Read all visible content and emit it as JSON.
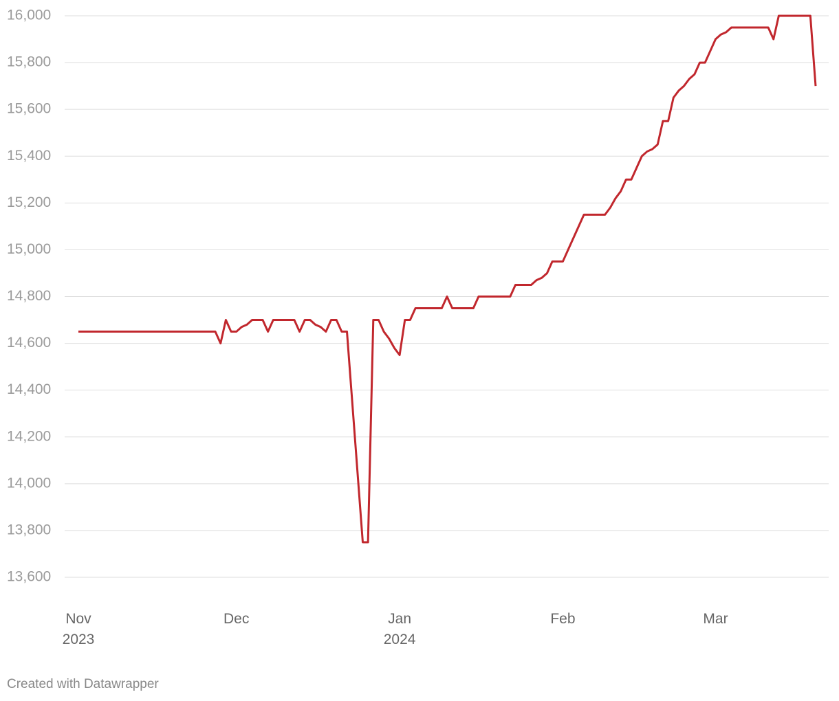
{
  "chart_data": {
    "type": "line",
    "categories": [
      "Nov\n2023",
      null,
      null,
      null,
      null,
      null,
      null,
      null,
      null,
      null,
      null,
      null,
      null,
      null,
      null,
      null,
      null,
      null,
      null,
      null,
      null,
      null,
      null,
      null,
      null,
      null,
      null,
      null,
      null,
      null,
      "Dec",
      null,
      null,
      null,
      null,
      null,
      null,
      null,
      null,
      null,
      null,
      null,
      null,
      null,
      null,
      null,
      null,
      null,
      null,
      null,
      null,
      null,
      null,
      null,
      null,
      null,
      null,
      null,
      null,
      null,
      null,
      "Jan\n2024",
      null,
      null,
      null,
      null,
      null,
      null,
      null,
      null,
      null,
      null,
      null,
      null,
      null,
      null,
      null,
      null,
      null,
      null,
      null,
      null,
      null,
      null,
      null,
      null,
      null,
      null,
      null,
      null,
      null,
      null,
      "Feb",
      null,
      null,
      null,
      null,
      null,
      null,
      null,
      null,
      null,
      null,
      null,
      null,
      null,
      null,
      null,
      null,
      null,
      null,
      null,
      null,
      null,
      null,
      null,
      null,
      null,
      null,
      null,
      null,
      "Mar",
      null,
      null,
      null,
      null,
      null,
      null,
      null,
      null,
      null,
      null,
      null,
      null,
      null,
      null,
      null,
      null,
      null,
      null,
      null
    ],
    "values": [
      14650,
      14650,
      14650,
      14650,
      14650,
      14650,
      14650,
      14650,
      14650,
      14650,
      14650,
      14650,
      14650,
      14650,
      14650,
      14650,
      14650,
      14650,
      14650,
      14650,
      14650,
      14650,
      14650,
      14650,
      14650,
      14650,
      14650,
      14600,
      14700,
      14650,
      14650,
      14670,
      14680,
      14700,
      14700,
      14700,
      14650,
      14700,
      14700,
      14700,
      14700,
      14700,
      14650,
      14700,
      14700,
      14680,
      14670,
      14650,
      14700,
      14700,
      14650,
      14650,
      14350,
      14050,
      13750,
      13750,
      14700,
      14700,
      14650,
      14620,
      14580,
      14550,
      14700,
      14700,
      14750,
      14750,
      14750,
      14750,
      14750,
      14750,
      14800,
      14750,
      14750,
      14750,
      14750,
      14750,
      14800,
      14800,
      14800,
      14800,
      14800,
      14800,
      14800,
      14850,
      14850,
      14850,
      14850,
      14870,
      14880,
      14900,
      14950,
      14950,
      14950,
      15000,
      15050,
      15100,
      15150,
      15150,
      15150,
      15150,
      15150,
      15180,
      15220,
      15250,
      15300,
      15300,
      15350,
      15400,
      15420,
      15430,
      15450,
      15550,
      15550,
      15650,
      15680,
      15700,
      15730,
      15750,
      15800,
      15800,
      15850,
      15900,
      15920,
      15930,
      15950,
      15950,
      15950,
      15950,
      15950,
      15950,
      15950,
      15950,
      15900,
      16000,
      16000,
      16000,
      16000,
      16000,
      16000,
      16000,
      15700
    ],
    "color": "#c1272d",
    "ylim": [
      13600,
      16000
    ],
    "yticks": [
      {
        "value": 13600,
        "label": "13,600"
      },
      {
        "value": 13800,
        "label": "13,800"
      },
      {
        "value": 14000,
        "label": "14,000"
      },
      {
        "value": 14200,
        "label": "14,200"
      },
      {
        "value": 14400,
        "label": "14,400"
      },
      {
        "value": 14600,
        "label": "14,600"
      },
      {
        "value": 14800,
        "label": "14,800"
      },
      {
        "value": 15000,
        "label": "15,000"
      },
      {
        "value": 15200,
        "label": "15,200"
      },
      {
        "value": 15400,
        "label": "15,400"
      },
      {
        "value": 15600,
        "label": "15,600"
      },
      {
        "value": 15800,
        "label": "15,800"
      },
      {
        "value": 16000,
        "label": "16,000"
      }
    ],
    "grid": true,
    "source": "Created with Datawrapper"
  }
}
